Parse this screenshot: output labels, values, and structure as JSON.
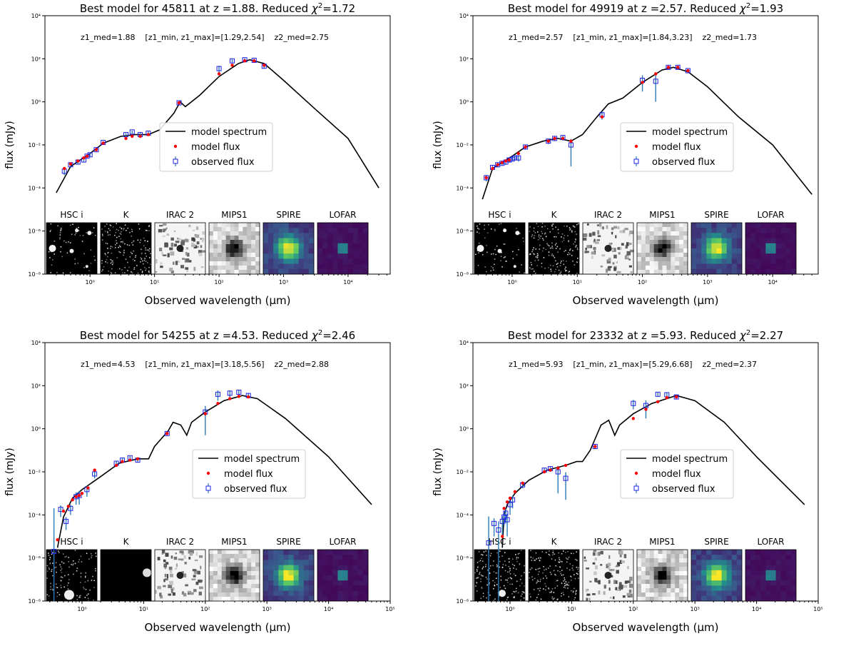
{
  "chart_data": [
    {
      "type": "scatter",
      "title_prefix": "Best model for 45811 at z =1.88. Reduced ",
      "title_chi": "χ",
      "title_sup": "2",
      "title_suffix": "=1.72",
      "annotation": "z1_med=1.88    [z1_min, z1_max]=[1.29,2.54]    z2_med=2.75",
      "ylabel": "flux (mJy)",
      "xlabel": "Observed wavelength (μm)",
      "xscale": "log",
      "yscale": "log",
      "xlim": [
        0.2,
        45000
      ],
      "ylim": [
        1e-08,
        10000.0
      ],
      "xticks": [
        "10⁰",
        "10¹",
        "10²",
        "10³",
        "10⁴"
      ],
      "yticks": [
        "10⁻⁸",
        "10⁻⁶",
        "10⁻⁴",
        "10⁻²",
        "10⁰",
        "10²",
        "10⁴"
      ],
      "legend": {
        "position": "center",
        "entries": [
          "model spectrum",
          "model flux",
          "observed flux"
        ]
      },
      "cutouts": [
        {
          "label": "HSC i",
          "style": "bw-dark-sources"
        },
        {
          "label": "K",
          "style": "bw-noise"
        },
        {
          "label": "IRAC 2",
          "style": "bw-blotchy"
        },
        {
          "label": "MIPS1",
          "style": "bw-pixel-blob"
        },
        {
          "label": "SPIRE",
          "style": "viridis-broad"
        },
        {
          "label": "LOFAR",
          "style": "viridis-compact"
        }
      ],
      "model_spectrum": [
        [
          0.3,
          6e-05
        ],
        [
          0.5,
          0.001
        ],
        [
          1,
          0.004
        ],
        [
          1.6,
          0.012
        ],
        [
          3,
          0.025
        ],
        [
          5,
          0.03
        ],
        [
          8,
          0.03
        ],
        [
          12,
          0.05
        ],
        [
          20,
          0.3
        ],
        [
          25,
          1.0
        ],
        [
          30,
          0.6
        ],
        [
          50,
          2
        ],
        [
          100,
          15
        ],
        [
          200,
          60
        ],
        [
          300,
          90
        ],
        [
          500,
          60
        ],
        [
          1000,
          10
        ],
        [
          3000,
          0.5
        ],
        [
          10000,
          0.02
        ],
        [
          30000,
          0.0001
        ]
      ],
      "model_flux": [
        [
          0.4,
          0.0008
        ],
        [
          0.5,
          0.0013
        ],
        [
          0.65,
          0.0018
        ],
        [
          0.8,
          0.0025
        ],
        [
          0.9,
          0.003
        ],
        [
          1.25,
          0.006
        ],
        [
          1.6,
          0.012
        ],
        [
          3.6,
          0.02
        ],
        [
          4.5,
          0.025
        ],
        [
          6,
          0.025
        ],
        [
          8,
          0.03
        ],
        [
          24,
          0.9
        ],
        [
          100,
          20
        ],
        [
          160,
          50
        ],
        [
          250,
          80
        ],
        [
          350,
          80
        ],
        [
          500,
          50
        ]
      ],
      "observed_flux": [
        [
          0.4,
          0.0006,
          0.0002
        ],
        [
          0.5,
          0.0012,
          0.0003
        ],
        [
          0.65,
          0.0016,
          0.0003
        ],
        [
          0.8,
          0.002,
          0.0004
        ],
        [
          0.9,
          0.003,
          0.0005
        ],
        [
          1.0,
          0.0035,
          0.0006
        ],
        [
          1.25,
          0.006,
          0.001
        ],
        [
          1.6,
          0.013,
          0.002
        ],
        [
          3.6,
          0.03,
          0.005
        ],
        [
          4.5,
          0.04,
          0.006
        ],
        [
          6,
          0.03,
          0.006
        ],
        [
          8,
          0.035,
          0.007
        ],
        [
          24,
          0.9,
          0.1
        ],
        [
          100,
          35,
          12
        ],
        [
          160,
          80,
          15
        ],
        [
          250,
          90,
          15
        ],
        [
          350,
          85,
          15
        ],
        [
          500,
          45,
          8
        ]
      ]
    },
    {
      "type": "scatter",
      "title_prefix": "Best model for 49919 at z =2.57. Reduced ",
      "title_chi": "χ",
      "title_sup": "2",
      "title_suffix": "=1.93",
      "annotation": "z1_med=2.57    [z1_min, z1_max]=[1.84,3.23]    z2_med=1.73",
      "ylabel": "flux (mJy)",
      "xlabel": "Observed wavelength (μm)",
      "xscale": "log",
      "yscale": "log",
      "xlim": [
        0.25,
        50000
      ],
      "ylim": [
        1e-08,
        10000.0
      ],
      "xticks": [
        "10⁰",
        "10¹",
        "10²",
        "10³",
        "10⁴"
      ],
      "yticks": [
        "10⁻⁸",
        "10⁻⁶",
        "10⁻⁴",
        "10⁻²",
        "10⁰",
        "10²",
        "10⁴"
      ],
      "legend": {
        "position": "center-right",
        "entries": [
          "model spectrum",
          "model flux",
          "observed flux"
        ]
      },
      "cutouts": [
        {
          "label": "HSC i",
          "style": "bw-dark-sources"
        },
        {
          "label": "K",
          "style": "bw-noise"
        },
        {
          "label": "IRAC 2",
          "style": "bw-blotchy"
        },
        {
          "label": "MIPS1",
          "style": "bw-pixel-blob"
        },
        {
          "label": "SPIRE",
          "style": "viridis-broad"
        },
        {
          "label": "LOFAR",
          "style": "viridis-compact"
        }
      ],
      "model_spectrum": [
        [
          0.35,
          3e-05
        ],
        [
          0.5,
          0.0008
        ],
        [
          1,
          0.003
        ],
        [
          1.6,
          0.008
        ],
        [
          3,
          0.015
        ],
        [
          5,
          0.02
        ],
        [
          8,
          0.015
        ],
        [
          12,
          0.03
        ],
        [
          20,
          0.2
        ],
        [
          30,
          0.8
        ],
        [
          50,
          1.5
        ],
        [
          100,
          8
        ],
        [
          200,
          30
        ],
        [
          300,
          40
        ],
        [
          500,
          25
        ],
        [
          1000,
          5
        ],
        [
          3000,
          0.2
        ],
        [
          10000,
          0.01
        ],
        [
          40000,
          5e-05
        ]
      ],
      "model_flux": [
        [
          0.4,
          0.0003
        ],
        [
          0.5,
          0.0008
        ],
        [
          0.6,
          0.0012
        ],
        [
          0.7,
          0.0015
        ],
        [
          0.8,
          0.0018
        ],
        [
          0.9,
          0.002
        ],
        [
          1.25,
          0.004
        ],
        [
          1.6,
          0.008
        ],
        [
          3.6,
          0.015
        ],
        [
          4.5,
          0.02
        ],
        [
          6,
          0.02
        ],
        [
          8,
          0.015
        ],
        [
          24,
          0.2
        ],
        [
          100,
          8
        ],
        [
          160,
          20
        ],
        [
          250,
          40
        ],
        [
          350,
          40
        ],
        [
          500,
          28
        ]
      ],
      "observed_flux": [
        [
          0.4,
          0.0003,
          0.0001
        ],
        [
          0.5,
          0.0009,
          0.0002
        ],
        [
          0.6,
          0.0012,
          0.0003
        ],
        [
          0.7,
          0.0014,
          0.0003
        ],
        [
          0.8,
          0.0016,
          0.0004
        ],
        [
          0.9,
          0.002,
          0.0005
        ],
        [
          1.0,
          0.0022,
          0.0005
        ],
        [
          1.1,
          0.0025,
          0.0006
        ],
        [
          1.25,
          0.0025,
          0.0008
        ],
        [
          1.6,
          0.008,
          0.002
        ],
        [
          3.6,
          0.015,
          0.004
        ],
        [
          4.5,
          0.02,
          0.005
        ],
        [
          6,
          0.022,
          0.006
        ],
        [
          8,
          0.01,
          0.009
        ],
        [
          24,
          0.25,
          0.1
        ],
        [
          100,
          10,
          7
        ],
        [
          160,
          9,
          8
        ],
        [
          250,
          40,
          8
        ],
        [
          350,
          40,
          8
        ],
        [
          500,
          28,
          5
        ]
      ]
    },
    {
      "type": "scatter",
      "title_prefix": "Best model for 54255 at z =4.53. Reduced ",
      "title_chi": "χ",
      "title_sup": "2",
      "title_suffix": "=2.46",
      "annotation": "z1_med=4.53    [z1_min, z1_max]=[3.18,5.56]    z2_med=2.88",
      "ylabel": "flux (mJy)",
      "xlabel": "Observed wavelength (μm)",
      "xscale": "log",
      "yscale": "log",
      "xlim": [
        0.25,
        100000
      ],
      "ylim": [
        1e-08,
        10000.0
      ],
      "xticks": [
        "10⁰",
        "10¹",
        "10²",
        "10³",
        "10⁴",
        "10⁵"
      ],
      "yticks": [
        "10⁻⁸",
        "10⁻⁶",
        "10⁻⁴",
        "10⁻²",
        "10⁰",
        "10²",
        "10⁴"
      ],
      "legend": {
        "position": "center-right",
        "entries": [
          "model spectrum",
          "model flux",
          "observed flux"
        ]
      },
      "cutouts": [
        {
          "label": "HSC i",
          "style": "bw-noise-faint"
        },
        {
          "label": "K",
          "style": "bw-black"
        },
        {
          "label": "IRAC 2",
          "style": "bw-blotchy"
        },
        {
          "label": "MIPS1",
          "style": "bw-pixel-blob"
        },
        {
          "label": "SPIRE",
          "style": "viridis-broad"
        },
        {
          "label": "LOFAR",
          "style": "viridis-compact"
        }
      ],
      "model_spectrum": [
        [
          0.4,
          3e-06
        ],
        [
          0.5,
          8e-05
        ],
        [
          0.7,
          0.0006
        ],
        [
          1,
          0.0015
        ],
        [
          2,
          0.006
        ],
        [
          4,
          0.025
        ],
        [
          8,
          0.04
        ],
        [
          12,
          0.04
        ],
        [
          15,
          0.15
        ],
        [
          25,
          0.8
        ],
        [
          30,
          2
        ],
        [
          40,
          1.5
        ],
        [
          50,
          0.5
        ],
        [
          60,
          2
        ],
        [
          100,
          6
        ],
        [
          200,
          20
        ],
        [
          400,
          35
        ],
        [
          700,
          25
        ],
        [
          2000,
          3
        ],
        [
          10000,
          0.05
        ],
        [
          50000,
          0.0003
        ]
      ],
      "model_flux": [
        [
          0.4,
          7e-06
        ],
        [
          0.5,
          0.00015
        ],
        [
          0.6,
          0.00025
        ],
        [
          0.7,
          0.0005
        ],
        [
          0.8,
          0.0007
        ],
        [
          0.9,
          0.0008
        ],
        [
          1.0,
          0.001
        ],
        [
          1.25,
          0.0018
        ],
        [
          1.6,
          0.012
        ],
        [
          3.6,
          0.02
        ],
        [
          4.5,
          0.03
        ],
        [
          6,
          0.035
        ],
        [
          8,
          0.04
        ],
        [
          24,
          0.6
        ],
        [
          100,
          5
        ],
        [
          160,
          15
        ],
        [
          250,
          25
        ],
        [
          350,
          32
        ],
        [
          500,
          30
        ]
      ],
      "observed_flux": [
        [
          0.35,
          2e-06,
          0.0002
        ],
        [
          0.45,
          0.00018,
          0.0001
        ],
        [
          0.55,
          5e-05,
          3e-05
        ],
        [
          0.65,
          0.0002,
          0.0001
        ],
        [
          0.8,
          0.0007,
          0.0004
        ],
        [
          0.9,
          0.0008,
          0.0005
        ],
        [
          1.2,
          0.0015,
          0.0008
        ],
        [
          1.6,
          0.008,
          0.003
        ],
        [
          3.6,
          0.025,
          0.006
        ],
        [
          4.5,
          0.035,
          0.007
        ],
        [
          6,
          0.045,
          0.009
        ],
        [
          8,
          0.035,
          0.008
        ],
        [
          24,
          0.6,
          0.1
        ],
        [
          100,
          6,
          5.5
        ],
        [
          160,
          40,
          20
        ],
        [
          250,
          45,
          15
        ],
        [
          350,
          50,
          12
        ],
        [
          500,
          35,
          8
        ]
      ]
    },
    {
      "type": "scatter",
      "title_prefix": "Best model for 23332 at z =5.93. Reduced ",
      "title_chi": "χ",
      "title_sup": "2",
      "title_suffix": "=2.27",
      "annotation": "z1_med=5.93    [z1_min, z1_max]=[5.29,6.68]    z2_med=2.37",
      "ylabel": "flux (mJy)",
      "xlabel": "Observed wavelength (μm)",
      "xscale": "log",
      "yscale": "log",
      "xlim": [
        0.25,
        100000
      ],
      "ylim": [
        1e-08,
        10000.0
      ],
      "xticks": [
        "10⁰",
        "10¹",
        "10²",
        "10³",
        "10⁴",
        "10⁵"
      ],
      "yticks": [
        "10⁻⁸",
        "10⁻⁶",
        "10⁻⁴",
        "10⁻²",
        "10⁰",
        "10²",
        "10⁴"
      ],
      "legend": {
        "position": "center-right",
        "entries": [
          "model spectrum",
          "model flux",
          "observed flux"
        ]
      },
      "cutouts": [
        {
          "label": "HSC i",
          "style": "bw-noise-sources"
        },
        {
          "label": "K",
          "style": "bw-noise"
        },
        {
          "label": "IRAC 2",
          "style": "bw-blotchy"
        },
        {
          "label": "MIPS1",
          "style": "bw-pixel-blob"
        },
        {
          "label": "SPIRE",
          "style": "viridis-broad"
        },
        {
          "label": "LOFAR",
          "style": "viridis-compact"
        }
      ],
      "model_spectrum": [
        [
          0.75,
          3e-06
        ],
        [
          0.8,
          0.0001
        ],
        [
          0.9,
          0.0003
        ],
        [
          1.2,
          0.001
        ],
        [
          2,
          0.004
        ],
        [
          4,
          0.012
        ],
        [
          8,
          0.02
        ],
        [
          12,
          0.03
        ],
        [
          15,
          0.03
        ],
        [
          20,
          0.1
        ],
        [
          30,
          1.5
        ],
        [
          40,
          2.5
        ],
        [
          50,
          0.5
        ],
        [
          60,
          1.5
        ],
        [
          100,
          5
        ],
        [
          200,
          15
        ],
        [
          500,
          35
        ],
        [
          1000,
          20
        ],
        [
          3000,
          2
        ],
        [
          10000,
          0.05
        ],
        [
          60000,
          0.0003
        ]
      ],
      "model_flux": [
        [
          0.75,
          1e-05
        ],
        [
          0.8,
          0.0002
        ],
        [
          0.9,
          0.0004
        ],
        [
          1.0,
          0.0006
        ],
        [
          1.2,
          0.0012
        ],
        [
          1.6,
          0.003
        ],
        [
          3.6,
          0.01
        ],
        [
          4.5,
          0.012
        ],
        [
          6,
          0.015
        ],
        [
          8,
          0.02
        ],
        [
          24,
          0.15
        ],
        [
          100,
          3
        ],
        [
          160,
          8
        ],
        [
          250,
          18
        ],
        [
          350,
          28
        ],
        [
          500,
          30
        ]
      ],
      "observed_flux": [
        [
          0.45,
          5e-06,
          8e-05
        ],
        [
          0.55,
          4e-05,
          3e-05
        ],
        [
          0.65,
          2e-05,
          3e-05
        ],
        [
          0.75,
          5e-05,
          4e-05
        ],
        [
          0.8,
          8e-05,
          5e-05
        ],
        [
          0.85,
          0.00012,
          8e-05
        ],
        [
          0.9,
          6e-05,
          5e-05
        ],
        [
          1.0,
          0.0003,
          0.0002
        ],
        [
          1.1,
          0.0005,
          0.0003
        ],
        [
          1.6,
          0.0025,
          0.0008
        ],
        [
          3.6,
          0.012,
          0.003
        ],
        [
          4.5,
          0.014,
          0.004
        ],
        [
          6,
          0.01,
          0.009
        ],
        [
          8,
          0.005,
          0.0045
        ],
        [
          24,
          0.15,
          0.03
        ],
        [
          100,
          15,
          7
        ],
        [
          160,
          12,
          9
        ],
        [
          250,
          40,
          9
        ],
        [
          350,
          38,
          9
        ],
        [
          500,
          30,
          6
        ]
      ]
    }
  ]
}
